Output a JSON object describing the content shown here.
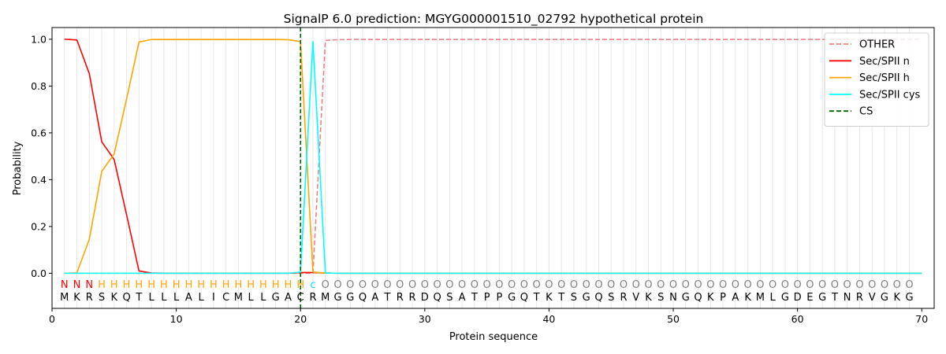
{
  "chart_data": {
    "type": "line",
    "title": "SignalP 6.0 prediction: MGYG000001510_02792 hypothetical protein",
    "xlabel": "Protein sequence",
    "ylabel": "Probability",
    "xlim": [
      0,
      71
    ],
    "ylim": [
      -0.15,
      1.05
    ],
    "xticks": [
      0,
      10,
      20,
      30,
      40,
      50,
      60,
      70
    ],
    "yticks": [
      0.0,
      0.2,
      0.4,
      0.6,
      0.8,
      1.0
    ],
    "ytick_labels": [
      "0.0",
      "0.2",
      "0.4",
      "0.6",
      "0.8",
      "1.0"
    ],
    "grid": "vertical lines at each residue",
    "legend_position": "top-right",
    "sequence": "MKRSKQTLLLALICMLLGACRMGGQATRRDQSATPPGQTKTSGQSRVKSNGQKPAKMLGDEGTNRVGKG",
    "predicted_labels": "NNNHHHHHHHHHHHHHHHHHcOOOOOOOOOOOOOOOOOOOOOOOOOOOOOOOOOOOOOOOOOOOOOOOOO",
    "label_colors": {
      "N": "#ff0000",
      "H": "#ffa500",
      "c": "#00e5ee",
      "O": "#808080"
    },
    "cleavage_site": 20,
    "series": [
      {
        "name": "OTHER",
        "color": "#f08080",
        "style": "dashed",
        "values": [
          0,
          0,
          0,
          0,
          0,
          0,
          0,
          0,
          0,
          0,
          0,
          0,
          0,
          0,
          0,
          0,
          0,
          0,
          0,
          0,
          0,
          0.995,
          0.998,
          0.999,
          0.999,
          0.999,
          0.999,
          0.999,
          0.999,
          0.999,
          0.999,
          0.999,
          0.999,
          0.999,
          0.999,
          0.999,
          0.999,
          0.999,
          0.999,
          0.999,
          0.999,
          0.999,
          0.999,
          0.999,
          0.999,
          0.999,
          0.999,
          0.999,
          0.999,
          0.999,
          0.999,
          0.999,
          0.999,
          0.999,
          0.999,
          0.999,
          0.999,
          0.999,
          0.999,
          0.999,
          0.999,
          0.999,
          0.999,
          0.999,
          0.999,
          0.999,
          0.999,
          0.999,
          0.999,
          0.999
        ]
      },
      {
        "name": "Sec/SPII n",
        "color": "#ff0000",
        "style": "solid",
        "values": [
          1.0,
          0.997,
          0.853,
          0.562,
          0.486,
          0.25,
          0.01,
          0.001,
          0,
          0,
          0,
          0,
          0,
          0,
          0,
          0,
          0,
          0,
          0,
          0.003,
          0.003,
          0.001,
          0,
          0,
          0,
          0,
          0,
          0,
          0,
          0,
          0,
          0,
          0,
          0,
          0,
          0,
          0,
          0,
          0,
          0,
          0,
          0,
          0,
          0,
          0,
          0,
          0,
          0,
          0,
          0,
          0,
          0,
          0,
          0,
          0,
          0,
          0,
          0,
          0,
          0,
          0,
          0,
          0,
          0,
          0,
          0,
          0,
          0,
          0,
          0
        ]
      },
      {
        "name": "Sec/SPII h",
        "color": "#ffa500",
        "style": "solid",
        "values": [
          0,
          0.002,
          0.145,
          0.435,
          0.51,
          0.745,
          0.988,
          0.999,
          0.999,
          0.999,
          0.999,
          0.999,
          0.999,
          0.999,
          0.999,
          0.999,
          0.999,
          0.999,
          0.998,
          0.99,
          0.005,
          0.001,
          0,
          0,
          0,
          0,
          0,
          0,
          0,
          0,
          0,
          0,
          0,
          0,
          0,
          0,
          0,
          0,
          0,
          0,
          0,
          0,
          0,
          0,
          0,
          0,
          0,
          0,
          0,
          0,
          0,
          0,
          0,
          0,
          0,
          0,
          0,
          0,
          0,
          0,
          0,
          0,
          0,
          0,
          0,
          0,
          0,
          0,
          0,
          0
        ]
      },
      {
        "name": "Sec/SPII cys",
        "color": "#00ffff",
        "style": "solid",
        "values": [
          0,
          0,
          0,
          0,
          0,
          0,
          0,
          0,
          0,
          0,
          0,
          0,
          0,
          0,
          0,
          0,
          0,
          0,
          0,
          0.005,
          0.99,
          0.001,
          0,
          0,
          0,
          0,
          0,
          0,
          0,
          0,
          0,
          0,
          0,
          0,
          0,
          0,
          0,
          0,
          0,
          0,
          0,
          0,
          0,
          0,
          0,
          0,
          0,
          0,
          0,
          0,
          0,
          0,
          0,
          0,
          0,
          0,
          0,
          0,
          0,
          0,
          0,
          0,
          0,
          0,
          0,
          0,
          0,
          0,
          0,
          0
        ]
      }
    ],
    "legend": [
      {
        "label": "OTHER",
        "color": "#f08080",
        "style": "dashed"
      },
      {
        "label": "Sec/SPII n",
        "color": "#ff0000",
        "style": "solid"
      },
      {
        "label": "Sec/SPII h",
        "color": "#ffa500",
        "style": "solid"
      },
      {
        "label": "Sec/SPII cys",
        "color": "#00ffff",
        "style": "solid"
      },
      {
        "label": "CS",
        "color": "#006400",
        "style": "dashed"
      }
    ]
  }
}
